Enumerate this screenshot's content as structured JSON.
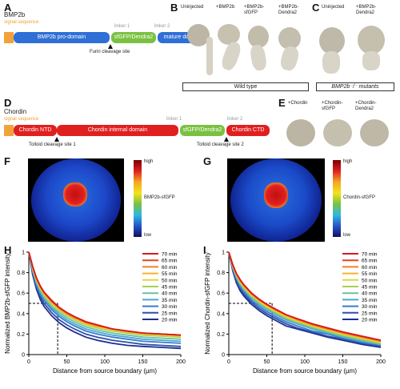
{
  "panels": {
    "A": {
      "letter": "A",
      "protein": "BMP2b",
      "signal": "signal sequence",
      "domains": [
        "BMP2b pro-domain",
        "sfGFP/Dendra2",
        "mature domain"
      ],
      "linkers": [
        "linker 1",
        "linker 2"
      ],
      "site": "Furin cleavage site"
    },
    "B": {
      "letter": "B",
      "columns": [
        "Uninjected",
        "+BMP2b",
        "+BMP2b-\nsfGFP",
        "+BMP2b-\nDendra2"
      ],
      "caption": "Wild type"
    },
    "C": {
      "letter": "C",
      "columns": [
        "Uninjected",
        "+BMP2b-\nDendra2"
      ],
      "caption": "BMP2b⁻/⁻ mutants"
    },
    "D": {
      "letter": "D",
      "protein": "Chordin",
      "signal": "signal sequence",
      "domains": [
        "Chordin NTD",
        "Chordin internal domain",
        "sfGFP/Dendra2",
        "Chordin CTD"
      ],
      "linkers": [
        "linker 1",
        "linker 2"
      ],
      "sites": [
        "Tolloid cleavage site 1",
        "Tolloid cleavage site 2"
      ]
    },
    "E": {
      "letter": "E",
      "columns": [
        "+Chordin",
        "+Chordin-\nsfGFP",
        "+Chordin-\nDendra2"
      ]
    },
    "F": {
      "letter": "F",
      "cb_high": "high",
      "cb_low": "low",
      "cb_label": "BMP2b-sfGFP"
    },
    "G": {
      "letter": "G",
      "cb_high": "high",
      "cb_low": "low",
      "cb_label": "Chordin-sfGFP"
    }
  },
  "legend_times": [
    "70 min",
    "65 min",
    "60 min",
    "55 min",
    "50 min",
    "45 min",
    "40 min",
    "35 min",
    "30 min",
    "25 min",
    "20 min"
  ],
  "legend_colors": [
    "#d7191c",
    "#e8421e",
    "#f4811f",
    "#f7b32b",
    "#e5d63a",
    "#a9cf4d",
    "#6cc0a0",
    "#4aa8d6",
    "#3a7bc8",
    "#2c4fae",
    "#1d2f8c"
  ],
  "chart_data": [
    {
      "panel": "H",
      "type": "line",
      "xlabel": "Distance from source boundary (µm)",
      "ylabel": "Normalized BMP2b-sfGFP intensity",
      "xlim": [
        0,
        200
      ],
      "ylim": [
        0,
        1
      ],
      "xticks": [
        "0",
        "50",
        "100",
        "150",
        "200"
      ],
      "yticks": [
        "0",
        "0.2",
        "0.4",
        "0.6",
        "0.8",
        "1"
      ],
      "reference": {
        "y": 0.5,
        "x": 38
      },
      "x": [
        0,
        5,
        10,
        15,
        20,
        30,
        40,
        50,
        60,
        75,
        90,
        110,
        130,
        150,
        175,
        200
      ],
      "series": [
        {
          "name": "70 min",
          "values": [
            1,
            0.86,
            0.75,
            0.67,
            0.61,
            0.53,
            0.46,
            0.41,
            0.37,
            0.32,
            0.29,
            0.25,
            0.23,
            0.21,
            0.2,
            0.19
          ]
        },
        {
          "name": "65 min",
          "values": [
            1,
            0.86,
            0.75,
            0.67,
            0.61,
            0.52,
            0.46,
            0.41,
            0.37,
            0.32,
            0.29,
            0.25,
            0.23,
            0.21,
            0.2,
            0.19
          ]
        },
        {
          "name": "60 min",
          "values": [
            1,
            0.86,
            0.74,
            0.66,
            0.6,
            0.52,
            0.45,
            0.4,
            0.36,
            0.31,
            0.28,
            0.25,
            0.23,
            0.21,
            0.2,
            0.19
          ]
        },
        {
          "name": "55 min",
          "values": [
            1,
            0.85,
            0.74,
            0.66,
            0.6,
            0.51,
            0.45,
            0.4,
            0.36,
            0.31,
            0.28,
            0.25,
            0.22,
            0.21,
            0.2,
            0.19
          ]
        },
        {
          "name": "50 min",
          "values": [
            1,
            0.85,
            0.73,
            0.65,
            0.59,
            0.5,
            0.44,
            0.39,
            0.35,
            0.3,
            0.27,
            0.24,
            0.22,
            0.2,
            0.19,
            0.18
          ]
        },
        {
          "name": "45 min",
          "values": [
            1,
            0.84,
            0.72,
            0.64,
            0.58,
            0.49,
            0.43,
            0.38,
            0.34,
            0.29,
            0.26,
            0.23,
            0.21,
            0.19,
            0.18,
            0.17
          ]
        },
        {
          "name": "40 min",
          "values": [
            1,
            0.83,
            0.71,
            0.63,
            0.56,
            0.47,
            0.41,
            0.36,
            0.32,
            0.27,
            0.24,
            0.21,
            0.19,
            0.17,
            0.16,
            0.15
          ]
        },
        {
          "name": "35 min",
          "values": [
            1,
            0.82,
            0.7,
            0.61,
            0.55,
            0.46,
            0.39,
            0.34,
            0.3,
            0.25,
            0.22,
            0.19,
            0.17,
            0.15,
            0.14,
            0.13
          ]
        },
        {
          "name": "30 min",
          "values": [
            1,
            0.81,
            0.68,
            0.59,
            0.53,
            0.44,
            0.37,
            0.32,
            0.28,
            0.23,
            0.2,
            0.17,
            0.15,
            0.13,
            0.12,
            0.11
          ]
        },
        {
          "name": "25 min",
          "values": [
            1,
            0.8,
            0.66,
            0.57,
            0.5,
            0.41,
            0.34,
            0.29,
            0.25,
            0.2,
            0.17,
            0.14,
            0.12,
            0.1,
            0.09,
            0.08
          ]
        },
        {
          "name": "20 min",
          "values": [
            1,
            0.78,
            0.64,
            0.54,
            0.47,
            0.38,
            0.31,
            0.26,
            0.22,
            0.17,
            0.14,
            0.11,
            0.09,
            0.08,
            0.07,
            0.06
          ]
        }
      ]
    },
    {
      "panel": "I",
      "type": "line",
      "xlabel": "Distance from source boundary (µm)",
      "ylabel": "Normalized Chordin-sfGFP intensity",
      "xlim": [
        0,
        200
      ],
      "ylim": [
        0,
        1
      ],
      "xticks": [
        "0",
        "50",
        "100",
        "150",
        "200"
      ],
      "yticks": [
        "0",
        "0.2",
        "0.4",
        "0.6",
        "0.8",
        "1"
      ],
      "reference": {
        "y": 0.5,
        "x": 57
      },
      "x": [
        0,
        5,
        10,
        15,
        20,
        30,
        40,
        50,
        60,
        75,
        90,
        110,
        130,
        150,
        175,
        200
      ],
      "series": [
        {
          "name": "70 min",
          "values": [
            1,
            0.88,
            0.79,
            0.73,
            0.68,
            0.6,
            0.54,
            0.49,
            0.45,
            0.39,
            0.35,
            0.3,
            0.26,
            0.22,
            0.18,
            0.14
          ]
        },
        {
          "name": "65 min",
          "values": [
            1,
            0.88,
            0.79,
            0.73,
            0.68,
            0.6,
            0.54,
            0.49,
            0.45,
            0.39,
            0.35,
            0.3,
            0.26,
            0.22,
            0.18,
            0.14
          ]
        },
        {
          "name": "60 min",
          "values": [
            1,
            0.88,
            0.79,
            0.72,
            0.67,
            0.59,
            0.53,
            0.49,
            0.44,
            0.39,
            0.34,
            0.29,
            0.25,
            0.21,
            0.17,
            0.13
          ]
        },
        {
          "name": "55 min",
          "values": [
            1,
            0.87,
            0.78,
            0.72,
            0.67,
            0.59,
            0.53,
            0.48,
            0.44,
            0.38,
            0.34,
            0.29,
            0.25,
            0.21,
            0.17,
            0.13
          ]
        },
        {
          "name": "50 min",
          "values": [
            1,
            0.87,
            0.78,
            0.71,
            0.66,
            0.58,
            0.52,
            0.47,
            0.43,
            0.37,
            0.33,
            0.28,
            0.24,
            0.2,
            0.16,
            0.12
          ]
        },
        {
          "name": "45 min",
          "values": [
            1,
            0.86,
            0.77,
            0.7,
            0.65,
            0.57,
            0.51,
            0.46,
            0.42,
            0.36,
            0.32,
            0.27,
            0.23,
            0.19,
            0.15,
            0.11
          ]
        },
        {
          "name": "40 min",
          "values": [
            1,
            0.86,
            0.76,
            0.69,
            0.64,
            0.56,
            0.5,
            0.45,
            0.41,
            0.35,
            0.31,
            0.26,
            0.22,
            0.18,
            0.14,
            0.1
          ]
        },
        {
          "name": "35 min",
          "values": [
            1,
            0.85,
            0.75,
            0.68,
            0.63,
            0.55,
            0.49,
            0.44,
            0.4,
            0.34,
            0.3,
            0.25,
            0.21,
            0.17,
            0.13,
            0.1
          ]
        },
        {
          "name": "30 min",
          "values": [
            1,
            0.84,
            0.74,
            0.66,
            0.61,
            0.53,
            0.47,
            0.42,
            0.38,
            0.32,
            0.28,
            0.23,
            0.2,
            0.16,
            0.12,
            0.09
          ]
        },
        {
          "name": "25 min",
          "values": [
            1,
            0.83,
            0.72,
            0.64,
            0.59,
            0.51,
            0.45,
            0.4,
            0.36,
            0.3,
            0.26,
            0.22,
            0.18,
            0.15,
            0.11,
            0.08
          ]
        },
        {
          "name": "20 min",
          "values": [
            1,
            0.82,
            0.7,
            0.62,
            0.57,
            0.49,
            0.43,
            0.38,
            0.34,
            0.28,
            0.25,
            0.21,
            0.17,
            0.14,
            0.1,
            0.07
          ]
        }
      ]
    }
  ]
}
